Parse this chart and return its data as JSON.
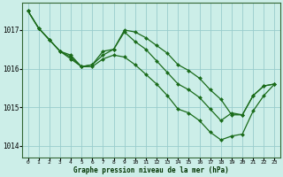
{
  "title": "Graphe pression niveau de la mer (hPa)",
  "bg_color": "#cceee8",
  "grid_color": "#99cccc",
  "line_color": "#1a6b1a",
  "marker_color": "#1a6b1a",
  "xlim": [
    -0.5,
    23.5
  ],
  "ylim": [
    1013.7,
    1017.7
  ],
  "yticks": [
    1014,
    1015,
    1016,
    1017
  ],
  "xticks": [
    0,
    1,
    2,
    3,
    4,
    5,
    6,
    7,
    8,
    9,
    10,
    11,
    12,
    13,
    14,
    15,
    16,
    17,
    18,
    19,
    20,
    21,
    22,
    23
  ],
  "series": [
    {
      "x": [
        0,
        1,
        2,
        3,
        4,
        5,
        6,
        7,
        8,
        9,
        10,
        11,
        12,
        13,
        14,
        15,
        16,
        17,
        18,
        19,
        20,
        21,
        22,
        23
      ],
      "y": [
        1017.5,
        1017.05,
        1016.75,
        1016.45,
        1016.35,
        1016.05,
        1016.1,
        1016.45,
        1016.5,
        1017.0,
        1016.95,
        1016.8,
        1016.6,
        1016.4,
        1016.1,
        1015.95,
        1015.75,
        1015.45,
        1015.2,
        1014.8,
        1014.8,
        1015.3,
        1015.55,
        1015.6
      ],
      "marker": "D",
      "markersize": 2.0,
      "linewidth": 0.9
    },
    {
      "x": [
        0,
        1,
        2,
        3,
        4,
        5,
        6,
        7,
        8,
        9,
        10,
        11,
        12,
        13,
        14,
        15,
        16,
        17,
        18,
        19,
        20,
        21,
        22,
        23
      ],
      "y": [
        1017.5,
        1017.05,
        1016.75,
        1016.45,
        1016.3,
        1016.05,
        1016.1,
        1016.35,
        1016.5,
        1016.95,
        1016.7,
        1016.5,
        1016.2,
        1015.9,
        1015.6,
        1015.45,
        1015.25,
        1014.95,
        1014.65,
        1014.85,
        1014.8,
        1015.3,
        1015.55,
        1015.6
      ],
      "marker": "D",
      "markersize": 2.0,
      "linewidth": 0.9
    },
    {
      "x": [
        0,
        1,
        2,
        3,
        4,
        5,
        6,
        7,
        8,
        9,
        10,
        11,
        12,
        13,
        14,
        15,
        16,
        17,
        18,
        19,
        20,
        21,
        22,
        23
      ],
      "y": [
        1017.5,
        1017.05,
        1016.75,
        1016.45,
        1016.25,
        1016.05,
        1016.05,
        1016.25,
        1016.35,
        1016.3,
        1016.1,
        1015.85,
        1015.6,
        1015.3,
        1014.95,
        1014.85,
        1014.65,
        1014.35,
        1014.15,
        1014.25,
        1014.3,
        1014.9,
        1015.3,
        1015.6
      ],
      "marker": "D",
      "markersize": 2.0,
      "linewidth": 0.9
    }
  ]
}
